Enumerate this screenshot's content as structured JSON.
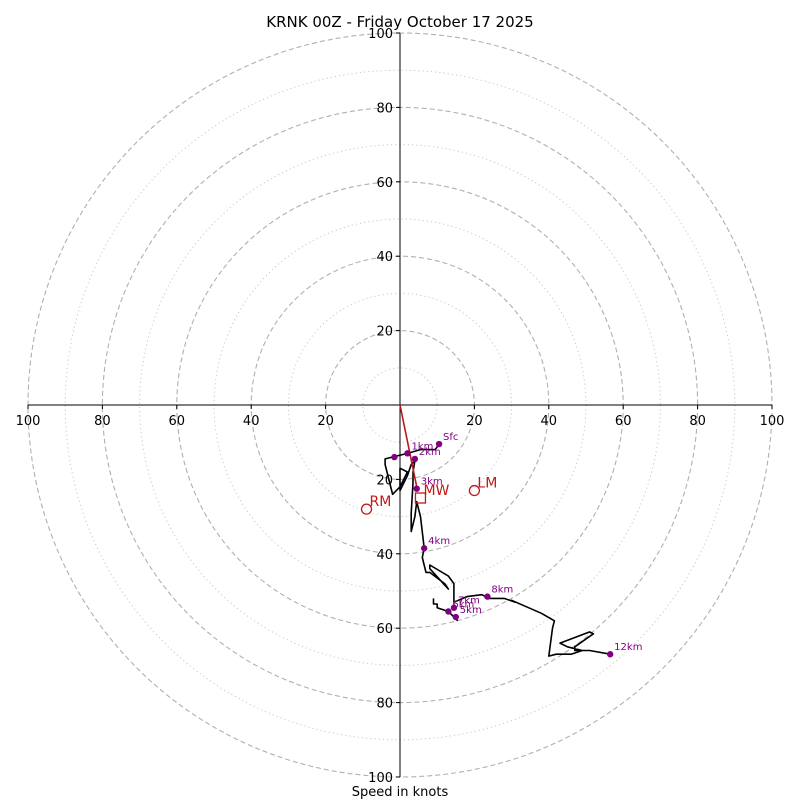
{
  "chart_data": {
    "type": "hodograph",
    "title": "KRNK 00Z - Friday October 17 2025",
    "xlabel": "Speed in knots",
    "range": [
      -100,
      100
    ],
    "x_tick_labels": [
      "100",
      "80",
      "60",
      "40",
      "20",
      "20",
      "40",
      "60",
      "80",
      "100"
    ],
    "x_tick_values": [
      -100,
      -80,
      -60,
      -40,
      -20,
      20,
      40,
      60,
      80,
      100
    ],
    "y_tick_labels": [
      "100",
      "80",
      "60",
      "40",
      "20",
      "20",
      "40",
      "60",
      "80",
      "100"
    ],
    "y_tick_values": [
      100,
      80,
      60,
      40,
      20,
      -20,
      -40,
      -60,
      -80,
      -100
    ],
    "ring_major": [
      20,
      40,
      60,
      80,
      100
    ],
    "ring_minor": [
      10,
      30,
      50,
      70,
      90
    ],
    "grid": true,
    "colors": {
      "trace": "#000000",
      "height_marker": "#800080",
      "storm_motion": "#c01818",
      "grid": "#b0b0b0"
    },
    "trace": [
      [
        10.5,
        -10.5
      ],
      [
        9.5,
        -12
      ],
      [
        5.5,
        -12
      ],
      [
        2,
        -13
      ],
      [
        -4,
        -14.5
      ],
      [
        -4,
        -16
      ],
      [
        -2,
        -24
      ],
      [
        0,
        -22
      ],
      [
        2,
        -18
      ],
      [
        0,
        -17
      ],
      [
        0,
        -23
      ],
      [
        2,
        -19
      ],
      [
        3,
        -16
      ],
      [
        4,
        -15
      ],
      [
        3.5,
        -18
      ],
      [
        3.5,
        -21
      ],
      [
        3,
        -29
      ],
      [
        3,
        -34
      ],
      [
        4,
        -30
      ],
      [
        4.5,
        -26
      ],
      [
        5.5,
        -30
      ],
      [
        6.5,
        -38.5
      ],
      [
        6,
        -41
      ],
      [
        7,
        -45
      ],
      [
        8,
        -45
      ],
      [
        12,
        -48
      ],
      [
        13,
        -49.5
      ],
      [
        8,
        -44
      ],
      [
        8,
        -43
      ],
      [
        13,
        -46
      ],
      [
        14.5,
        -48
      ],
      [
        14.5,
        -53
      ],
      [
        18,
        -51.5
      ],
      [
        22,
        -51
      ],
      [
        24,
        -52
      ],
      [
        28,
        -52
      ],
      [
        31,
        -53
      ],
      [
        30,
        -52.5
      ],
      [
        38,
        -56
      ],
      [
        41.5,
        -58
      ],
      [
        41,
        -60
      ],
      [
        40,
        -67.5
      ],
      [
        42,
        -67
      ],
      [
        46,
        -67
      ],
      [
        49,
        -66
      ],
      [
        45,
        -65
      ],
      [
        43,
        -64
      ],
      [
        51,
        -61
      ],
      [
        52,
        -61.5
      ],
      [
        47,
        -65
      ],
      [
        47,
        -66
      ],
      [
        51,
        -66
      ],
      [
        56.5,
        -67
      ]
    ],
    "trace_tail": [
      [
        15.5,
        -58
      ],
      [
        13,
        -55.5
      ],
      [
        10,
        -54.5
      ],
      [
        10,
        -53.5
      ],
      [
        9,
        -53.5
      ],
      [
        9,
        -52
      ]
    ],
    "height_markers": [
      {
        "label": "Sfc",
        "u": 10.5,
        "v": -10.5
      },
      {
        "label": "1km",
        "u": 2,
        "v": -13
      },
      {
        "label": "2km",
        "u": 4,
        "v": -14.5
      },
      {
        "label": "",
        "u": -1.5,
        "v": -14
      },
      {
        "label": "3km",
        "u": 4.5,
        "v": -22.5
      },
      {
        "label": "4km",
        "u": 6.5,
        "v": -38.5
      },
      {
        "label": "8km",
        "u": 23.5,
        "v": -51.5
      },
      {
        "label": "7km",
        "u": 14.5,
        "v": -54.5
      },
      {
        "label": "6km",
        "u": 13,
        "v": -55.5
      },
      {
        "label": "5km",
        "u": 15,
        "v": -57
      },
      {
        "label": "12km",
        "u": 56.5,
        "v": -67
      }
    ],
    "shear_vector": [
      [
        0,
        0
      ],
      [
        4.5,
        -22
      ]
    ],
    "storm_motion": [
      {
        "label": "RM",
        "u": -9,
        "v": -28,
        "marker": "circle"
      },
      {
        "label": "LM",
        "u": 20,
        "v": -23,
        "marker": "circle"
      },
      {
        "label": "MW",
        "u": 5.5,
        "v": -25,
        "marker": "square"
      }
    ]
  }
}
